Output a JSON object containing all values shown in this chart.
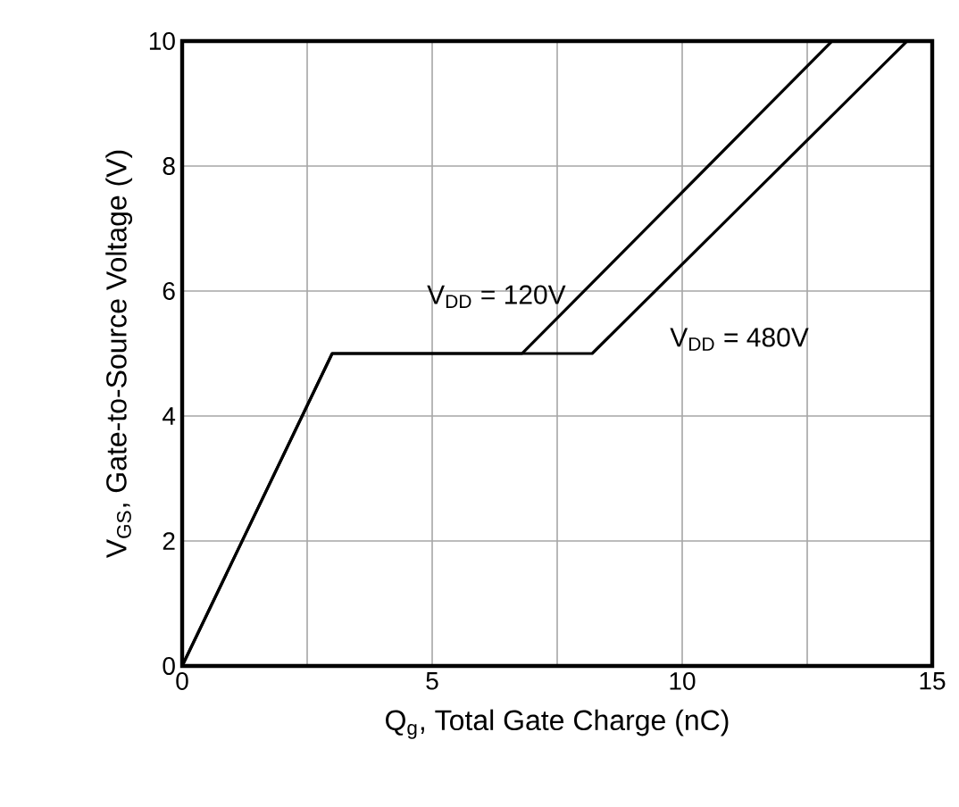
{
  "chart_data": {
    "type": "line",
    "xlabel": "Q$_{g}$, Total Gate Charge (nC)",
    "ylabel": "V$_{GS}$, Gate-to-Source Voltage (V)",
    "xlim": [
      0,
      15
    ],
    "ylim": [
      0,
      10
    ],
    "xticks": [
      0,
      {
        "value": 2.5,
        "label": null
      },
      5,
      {
        "value": 7.5,
        "label": null
      },
      10,
      {
        "value": 12.5,
        "label": null
      },
      15
    ],
    "yticks": [
      0,
      2,
      4,
      6,
      8,
      10
    ],
    "grid": true,
    "series": [
      {
        "name": "V$_{DD}$ = 120V",
        "color": "#000000",
        "x": [
          0,
          3,
          6.8,
          13.0
        ],
        "values": [
          0,
          5,
          5,
          10
        ]
      },
      {
        "name": "V$_{DD}$ = 480V",
        "color": "#000000",
        "x": [
          0,
          3,
          8.2,
          14.5
        ],
        "values": [
          0,
          5,
          5,
          10
        ]
      }
    ]
  }
}
